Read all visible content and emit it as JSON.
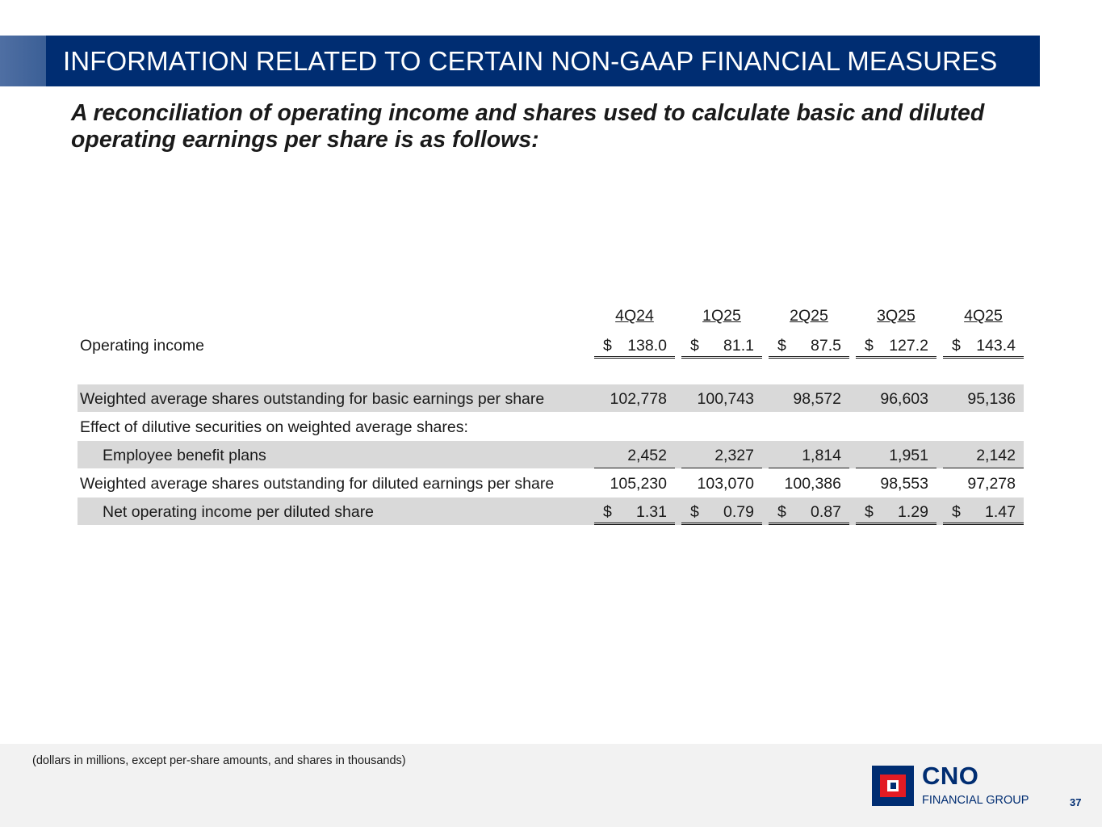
{
  "header": {
    "title": "INFORMATION RELATED TO CERTAIN NON-GAAP FINANCIAL MEASURES",
    "subtitle": "A reconciliation of operating income and shares used to calculate basic and diluted operating earnings per share is as follows:"
  },
  "table": {
    "columns": [
      "4Q24",
      "1Q25",
      "2Q25",
      "3Q25",
      "4Q25"
    ],
    "currency_symbol": "$",
    "rows": [
      {
        "label": "Operating income",
        "values": [
          "138.0",
          "81.1",
          "87.5",
          "127.2",
          "143.4"
        ]
      },
      {
        "label": "Weighted average shares outstanding for basic earnings per share",
        "values": [
          "102,778",
          "100,743",
          "98,572",
          "96,603",
          "95,136"
        ]
      },
      {
        "label": "Effect of dilutive securities on weighted average shares:",
        "values": []
      },
      {
        "label": "Employee benefit plans",
        "values": [
          "2,452",
          "2,327",
          "1,814",
          "1,951",
          "2,142"
        ]
      },
      {
        "label": "Weighted average shares outstanding for diluted earnings per share",
        "values": [
          "105,230",
          "103,070",
          "100,386",
          "98,553",
          "97,278"
        ]
      },
      {
        "label": "Net operating income per diluted share",
        "values": [
          "1.31",
          "0.79",
          "0.87",
          "1.29",
          "1.47"
        ]
      }
    ]
  },
  "footer": {
    "note": "(dollars in millions, except per-share amounts, and shares in thousands)",
    "logo_name": "CNO",
    "logo_sub": "FINANCIAL GROUP",
    "page_number": "37"
  },
  "colors": {
    "title_bar": "#002d72",
    "row_shade": "#d9d9d9",
    "logo_red": "#e31b23"
  }
}
